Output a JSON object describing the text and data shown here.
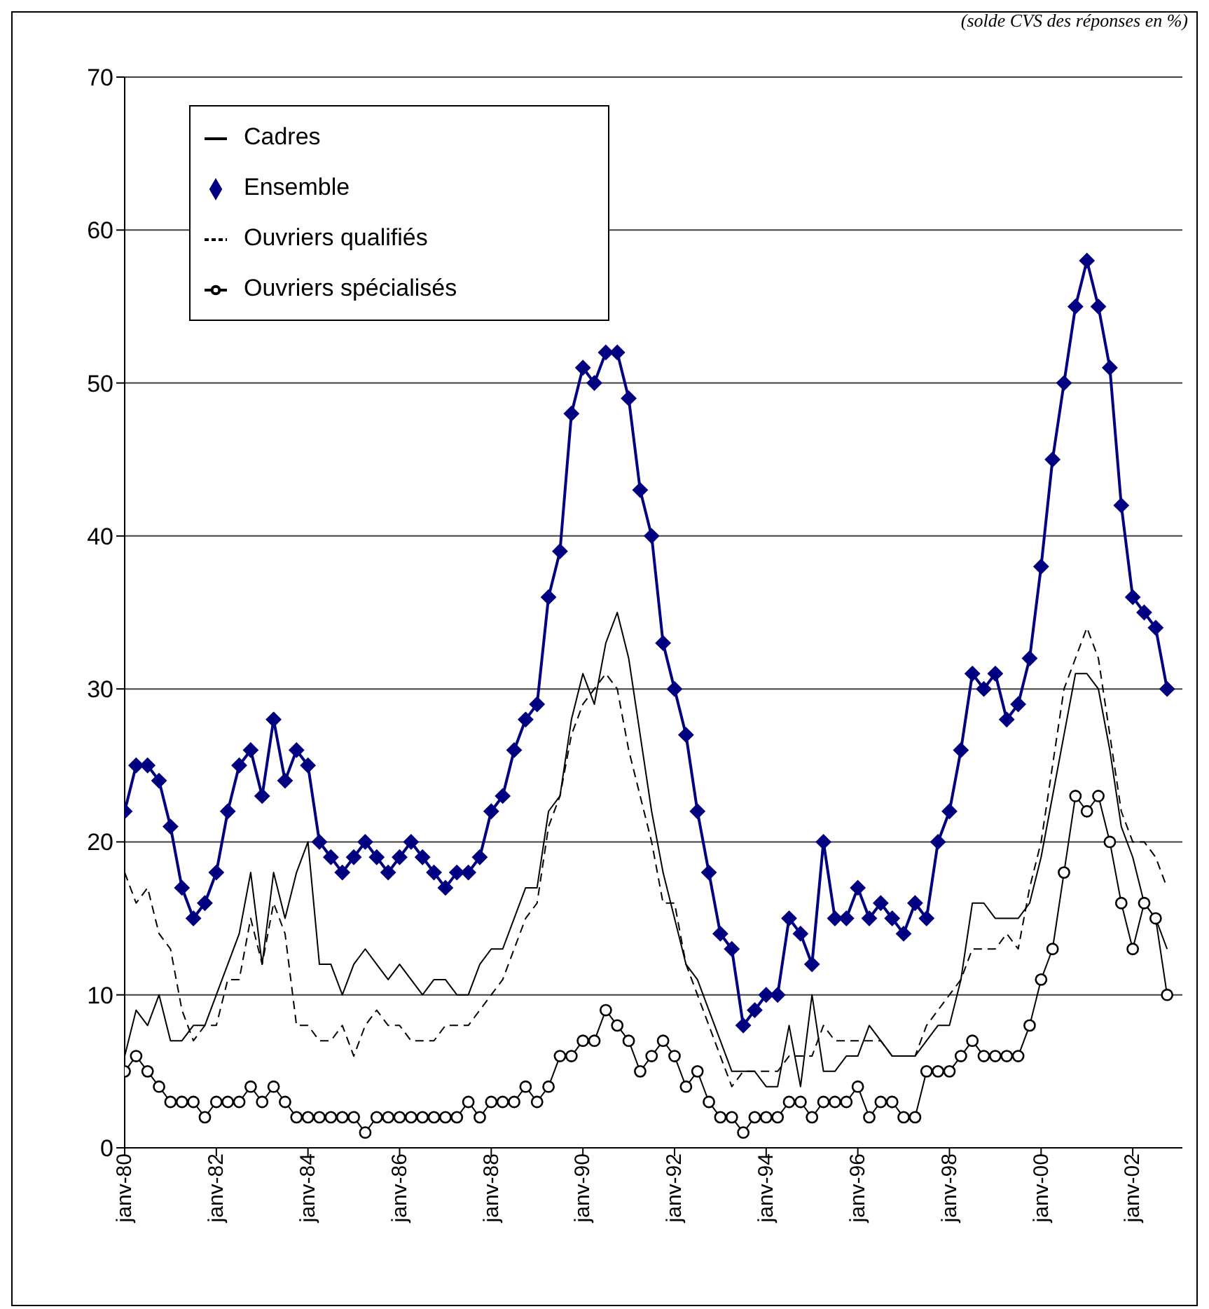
{
  "chart_data": {
    "type": "line",
    "annotations": [
      "(solde CVS des réponses en %)"
    ],
    "x": [
      "1980-01",
      "1980-04",
      "1980-07",
      "1980-10",
      "1981-01",
      "1981-04",
      "1981-07",
      "1981-10",
      "1982-01",
      "1982-04",
      "1982-07",
      "1982-10",
      "1983-01",
      "1983-04",
      "1983-07",
      "1983-10",
      "1984-01",
      "1984-04",
      "1984-07",
      "1984-10",
      "1985-01",
      "1985-04",
      "1985-07",
      "1985-10",
      "1986-01",
      "1986-04",
      "1986-07",
      "1986-10",
      "1987-01",
      "1987-04",
      "1987-07",
      "1987-10",
      "1988-01",
      "1988-04",
      "1988-07",
      "1988-10",
      "1989-01",
      "1989-04",
      "1989-07",
      "1989-10",
      "1990-01",
      "1990-04",
      "1990-07",
      "1990-10",
      "1991-01",
      "1991-04",
      "1991-07",
      "1991-10",
      "1992-01",
      "1992-04",
      "1992-07",
      "1992-10",
      "1993-01",
      "1993-04",
      "1993-07",
      "1993-10",
      "1994-01",
      "1994-04",
      "1994-07",
      "1994-10",
      "1995-01",
      "1995-04",
      "1995-07",
      "1995-10",
      "1996-01",
      "1996-04",
      "1996-07",
      "1996-10",
      "1997-01",
      "1997-04",
      "1997-07",
      "1997-10",
      "1998-01",
      "1998-04",
      "1998-07",
      "1998-10",
      "1999-01",
      "1999-04",
      "1999-07",
      "1999-10",
      "2000-01",
      "2000-04",
      "2000-07",
      "2000-10",
      "2001-01",
      "2001-04",
      "2001-07",
      "2001-10",
      "2002-01",
      "2002-04",
      "2002-07",
      "2002-10"
    ],
    "series": [
      {
        "name": "Ensemble",
        "color": "#000080",
        "marker": "diamond",
        "line_style": "solid",
        "values": [
          22,
          25,
          25,
          24,
          21,
          17,
          15,
          16,
          18,
          22,
          25,
          26,
          23,
          28,
          24,
          26,
          25,
          20,
          19,
          18,
          19,
          20,
          19,
          18,
          19,
          20,
          19,
          18,
          17,
          18,
          18,
          19,
          22,
          23,
          26,
          28,
          29,
          36,
          39,
          48,
          51,
          50,
          52,
          52,
          49,
          43,
          40,
          33,
          30,
          27,
          22,
          18,
          14,
          13,
          8,
          9,
          10,
          10,
          15,
          14,
          12,
          20,
          15,
          15,
          17,
          15,
          16,
          15,
          14,
          16,
          15,
          20,
          22,
          26,
          31,
          30,
          31,
          28,
          29,
          32,
          38,
          45,
          50,
          55,
          58,
          55,
          51,
          42,
          36,
          35,
          34,
          30
        ]
      },
      {
        "name": "Cadres",
        "color": "#000000",
        "marker": "none",
        "line_style": "solid",
        "values": [
          6,
          9,
          8,
          10,
          7,
          7,
          8,
          8,
          10,
          12,
          14,
          18,
          12,
          18,
          15,
          18,
          20,
          12,
          12,
          10,
          12,
          13,
          12,
          11,
          12,
          11,
          10,
          11,
          11,
          10,
          10,
          12,
          13,
          13,
          15,
          17,
          17,
          22,
          23,
          28,
          31,
          29,
          33,
          35,
          32,
          27,
          22,
          18,
          15,
          12,
          11,
          9,
          7,
          5,
          5,
          5,
          4,
          4,
          8,
          4,
          10,
          5,
          5,
          6,
          6,
          8,
          7,
          6,
          6,
          6,
          7,
          8,
          8,
          11,
          16,
          16,
          15,
          15,
          15,
          16,
          19,
          23,
          27,
          31,
          31,
          30,
          26,
          21,
          19,
          16,
          15,
          13
        ]
      },
      {
        "name": "Ouvriers qualifiés",
        "color": "#000000",
        "marker": "none",
        "line_style": "dashed",
        "values": [
          18,
          16,
          17,
          14,
          13,
          9,
          7,
          8,
          8,
          11,
          11,
          15,
          12,
          16,
          14,
          8,
          8,
          7,
          7,
          8,
          6,
          8,
          9,
          8,
          8,
          7,
          7,
          7,
          8,
          8,
          8,
          9,
          10,
          11,
          13,
          15,
          16,
          21,
          23,
          27,
          29,
          30,
          31,
          30,
          26,
          23,
          20,
          16,
          16,
          12,
          10,
          8,
          6,
          4,
          5,
          5,
          5,
          5,
          6,
          6,
          6,
          8,
          7,
          7,
          7,
          7,
          7,
          6,
          6,
          6,
          8,
          9,
          10,
          11,
          13,
          13,
          13,
          14,
          13,
          17,
          20,
          25,
          30,
          32,
          34,
          32,
          27,
          22,
          20,
          20,
          19,
          17
        ]
      },
      {
        "name": "Ouvriers spécialisés",
        "color": "#000000",
        "marker": "circle",
        "line_style": "solid",
        "values": [
          5,
          6,
          5,
          4,
          3,
          3,
          3,
          2,
          3,
          3,
          3,
          4,
          3,
          4,
          3,
          2,
          2,
          2,
          2,
          2,
          2,
          1,
          2,
          2,
          2,
          2,
          2,
          2,
          2,
          2,
          3,
          2,
          3,
          3,
          3,
          4,
          3,
          4,
          6,
          6,
          7,
          7,
          9,
          8,
          7,
          5,
          6,
          7,
          6,
          4,
          5,
          3,
          2,
          2,
          1,
          2,
          2,
          2,
          3,
          3,
          2,
          3,
          3,
          3,
          4,
          2,
          3,
          3,
          2,
          2,
          5,
          5,
          5,
          6,
          7,
          6,
          6,
          6,
          6,
          8,
          11,
          13,
          18,
          23,
          22,
          23,
          20,
          16,
          13,
          16,
          15,
          10
        ]
      }
    ],
    "xlim": [
      "1980-01",
      "2003-02"
    ],
    "xticks": [
      {
        "value": "1980-01",
        "label": "janv-80"
      },
      {
        "value": "1982-01",
        "label": "janv-82"
      },
      {
        "value": "1984-01",
        "label": "janv-84"
      },
      {
        "value": "1986-01",
        "label": "janv-86"
      },
      {
        "value": "1988-01",
        "label": "janv-88"
      },
      {
        "value": "1990-01",
        "label": "janv-90"
      },
      {
        "value": "1992-01",
        "label": "janv-92"
      },
      {
        "value": "1994-01",
        "label": "janv-94"
      },
      {
        "value": "1996-01",
        "label": "janv-96"
      },
      {
        "value": "1998-01",
        "label": "janv-98"
      },
      {
        "value": "2000-01",
        "label": "janv-00"
      },
      {
        "value": "2002-01",
        "label": "janv-02"
      }
    ],
    "ylim": [
      0,
      70
    ],
    "yticks": [
      0,
      10,
      20,
      30,
      40,
      50,
      60,
      70
    ],
    "grid": "y",
    "legend": "top left"
  }
}
